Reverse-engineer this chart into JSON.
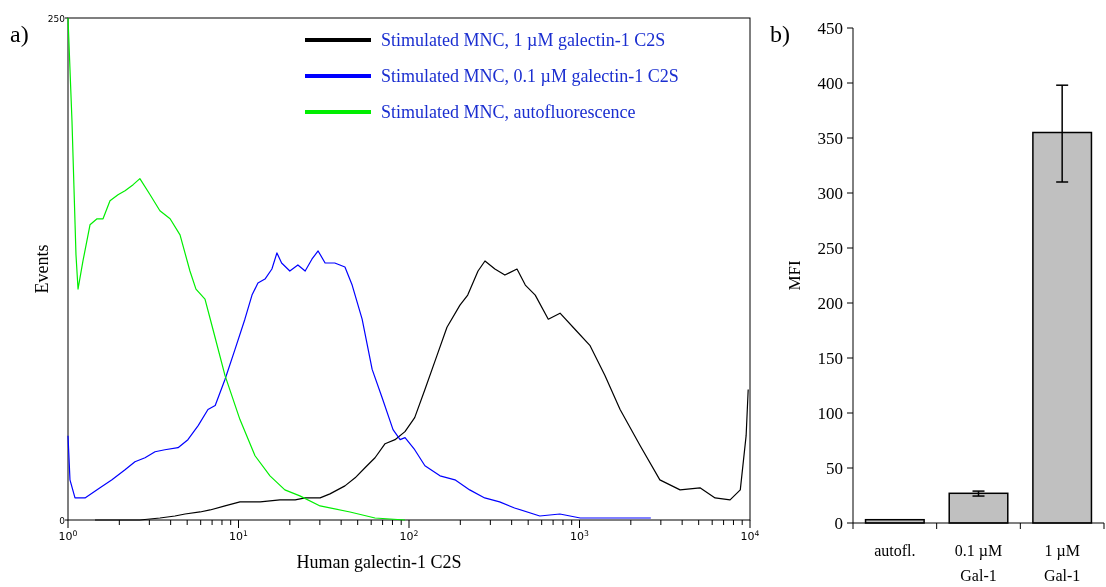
{
  "chart_data": [
    {
      "type": "line",
      "title": "a)",
      "xlabel": "Human galectin-1 C2S",
      "ylabel": "Events",
      "log": "x",
      "legend": "top right",
      "grid": false,
      "xlim": [
        1,
        10000
      ],
      "ylim": [
        0,
        250
      ],
      "yticks": [
        0,
        250
      ],
      "xticks": [
        {
          "value": 1,
          "label": "10$^{0}$"
        },
        {
          "value": 2,
          "label": null
        },
        {
          "value": 3,
          "label": null
        },
        {
          "value": 4,
          "label": null
        },
        {
          "value": 5,
          "label": null
        },
        {
          "value": 6,
          "label": null
        },
        {
          "value": 7,
          "label": null
        },
        {
          "value": 8,
          "label": null
        },
        {
          "value": 9,
          "label": null
        },
        {
          "value": 10,
          "label": "10$^{1}$"
        },
        {
          "value": 20,
          "label": null
        },
        {
          "value": 30,
          "label": null
        },
        {
          "value": 40,
          "label": null
        },
        {
          "value": 50,
          "label": null
        },
        {
          "value": 60,
          "label": null
        },
        {
          "value": 70,
          "label": null
        },
        {
          "value": 80,
          "label": null
        },
        {
          "value": 90,
          "label": null
        },
        {
          "value": 100,
          "label": "10$^{2}$"
        },
        {
          "value": 200,
          "label": null
        },
        {
          "value": 300,
          "label": null
        },
        {
          "value": 400,
          "label": null
        },
        {
          "value": 500,
          "label": null
        },
        {
          "value": 600,
          "label": null
        },
        {
          "value": 700,
          "label": null
        },
        {
          "value": 800,
          "label": null
        },
        {
          "value": 900,
          "label": null
        },
        {
          "value": 1000,
          "label": "10$^{3}$"
        },
        {
          "value": 2000,
          "label": null
        },
        {
          "value": 3000,
          "label": null
        },
        {
          "value": 4000,
          "label": null
        },
        {
          "value": 5000,
          "label": null
        },
        {
          "value": 6000,
          "label": null
        },
        {
          "value": 7000,
          "label": null
        },
        {
          "value": 8000,
          "label": null
        },
        {
          "value": 9000,
          "label": null
        },
        {
          "value": 10000,
          "label": "10$^{4}$"
        }
      ],
      "series": [
        {
          "name": "Stimulated MNC, 1 µM galectin-1 C2S",
          "color": "#000000",
          "x": [
            1.44,
            2.64,
            3.46,
            4.24,
            4.86,
            5.95,
            6.81,
            8.33,
            10.2,
            13.4,
            17.5,
            21.5,
            24.6,
            30.1,
            34.4,
            42.1,
            48.3,
            55.2,
            63.2,
            72.4,
            82.8,
            94.7,
            108,
            124,
            146,
            167,
            199,
            221,
            254,
            279,
            319,
            365,
            430,
            481,
            550,
            656,
            769,
            940,
            1150,
            1410,
            1730,
            2270,
            2960,
            3890,
            5090,
            6240,
            7640,
            8770,
            9490,
            9760
          ],
          "values": [
            0,
            0,
            1,
            2,
            3,
            4,
            5,
            7,
            9,
            9,
            10,
            10,
            11,
            11,
            13,
            17,
            21,
            26,
            31,
            38,
            40,
            44,
            51,
            65,
            82,
            96,
            107,
            112,
            124,
            129,
            125,
            122,
            125,
            117,
            112,
            100,
            103,
            95,
            87,
            72,
            55,
            37,
            20,
            15,
            16,
            11,
            10,
            15,
            42,
            65
          ]
        },
        {
          "name": "Stimulated MNC, 0.1 µM galectin-1 C2S",
          "color": "#0000ff",
          "x": [
            1,
            1.027,
            1.099,
            1.258,
            1.541,
            1.811,
            2.16,
            2.47,
            2.83,
            3.24,
            3.7,
            4.42,
            5.05,
            5.8,
            6.62,
            7.3,
            8.33,
            9.54,
            10.9,
            12,
            13,
            14.3,
            15.7,
            16.8,
            17.9,
            20,
            22.3,
            24.6,
            27,
            29.3,
            32.2,
            36.7,
            42.1,
            46.4,
            53.1,
            60.8,
            69.5,
            80.6,
            88.7,
            94.8,
            108,
            124,
            152,
            186,
            227,
            278,
            340,
            416,
            585,
            767,
            1010,
            1730,
            2620
          ],
          "values": [
            42,
            20,
            11,
            11,
            16,
            20,
            25,
            29,
            31,
            34,
            35,
            36,
            40,
            47,
            55,
            57,
            70,
            85,
            100,
            112,
            118,
            120,
            125,
            133,
            128,
            124,
            127,
            124,
            130,
            134,
            128,
            128,
            126,
            117,
            100,
            75,
            61,
            45,
            40,
            41,
            35,
            27,
            22,
            20,
            15,
            11,
            9,
            6,
            2,
            3,
            1,
            1,
            1
          ]
        },
        {
          "name": "Stimulated MNC, autofluorescence",
          "color": "#00ee00",
          "x": [
            1,
            1.055,
            1.114,
            1.145,
            1.224,
            1.346,
            1.48,
            1.605,
            1.763,
            1.965,
            2.16,
            2.41,
            2.64,
            3.03,
            3.46,
            3.97,
            4.54,
            5.19,
            5.63,
            6.36,
            7.08,
            8.33,
            10.2,
            12.5,
            15.3,
            18.7,
            22.9,
            30.1,
            45.1,
            63.2,
            94.8
          ],
          "values": [
            250,
            199,
            132,
            115,
            129,
            147,
            150,
            150,
            159,
            162,
            164,
            167,
            170,
            162,
            154,
            150,
            142,
            124,
            115,
            110,
            95,
            72,
            50,
            32,
            22,
            15,
            12,
            7,
            4,
            1,
            0
          ]
        }
      ]
    },
    {
      "type": "bar",
      "title": "b)",
      "ylabel": "MFI",
      "categories": [
        "autofl.",
        "0.1 µM Gal-1",
        "1 µM Gal-1"
      ],
      "values": [
        3,
        27,
        355
      ],
      "color": "#c0c0c0",
      "errors": [
        null,
        [
          24.5,
          29
        ],
        [
          310,
          398
        ]
      ],
      "ylim": [
        0,
        450
      ],
      "yticks": [
        0,
        50,
        100,
        150,
        200,
        250,
        300,
        350,
        400,
        450
      ],
      "grid": false
    }
  ]
}
